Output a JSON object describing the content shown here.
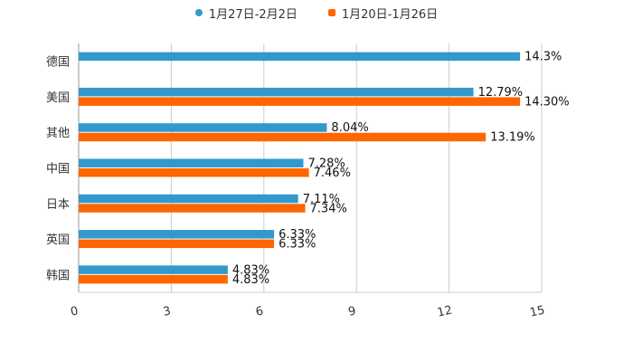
{
  "chart_data": {
    "type": "bar",
    "orientation": "horizontal",
    "title": "",
    "xlabel": "",
    "ylabel": "",
    "xlim": [
      0,
      15
    ],
    "ticks": [
      0,
      3,
      6,
      9,
      12,
      15
    ],
    "tick_labels": [
      "0",
      "3",
      "6",
      "9",
      "12",
      "15"
    ],
    "grid": true,
    "legend_position": "top-center",
    "categories": [
      "德国",
      "美国",
      "其他",
      "中国",
      "日本",
      "英国",
      "韩国"
    ],
    "series": [
      {
        "name": "1月27日-2月2日",
        "color": "#3399cc",
        "values": [
          14.3,
          12.79,
          8.04,
          7.28,
          7.11,
          6.33,
          4.83
        ],
        "labels": [
          "14.3%",
          "12.79%",
          "8.04%",
          "7.28%",
          "7.11%",
          "6.33%",
          "4.83%"
        ]
      },
      {
        "name": "1月20日-1月26日",
        "color": "#ff6600",
        "values": [
          null,
          14.3,
          13.19,
          7.46,
          7.34,
          6.33,
          4.83
        ],
        "labels": [
          null,
          "14.30%",
          "13.19%",
          "7.46%",
          "7.34%",
          "6.33%",
          "4.83%"
        ]
      }
    ]
  }
}
